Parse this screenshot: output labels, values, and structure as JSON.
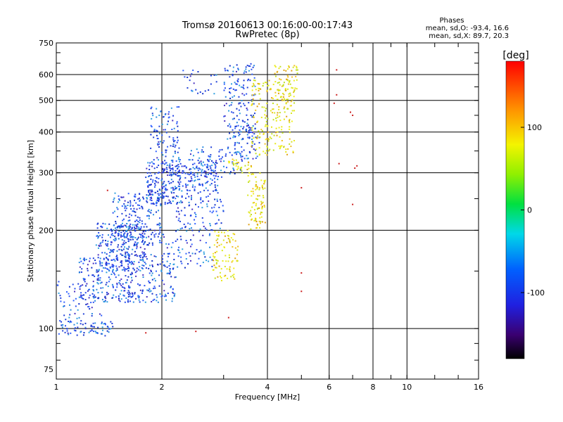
{
  "chart_data": {
    "type": "scatter",
    "title": "Tromsø 20160613 00:16:00-00:17:43",
    "subtitle": "RwPretec (8p)",
    "xlabel": "Frequency [MHz]",
    "ylabel": "Stationary phase Virtual Height [km]",
    "x_scale": "log",
    "y_scale": "log",
    "xlim": [
      1,
      16
    ],
    "ylim": [
      70,
      750
    ],
    "x_ticks": [
      1,
      2,
      4,
      6,
      8,
      10,
      16
    ],
    "y_ticks": [
      75,
      100,
      200,
      300,
      400,
      500,
      600,
      750
    ],
    "grid": true,
    "phase_info": {
      "title": "Phases",
      "line_o": "mean, sd,O: -93.4, 16.6",
      "line_x": "mean, sd,X:  89.7, 20.3"
    },
    "colorbar": {
      "label": "[deg]",
      "range": [
        -180,
        180
      ],
      "ticks": [
        "100",
        "0",
        "-100"
      ],
      "tick_values": [
        100,
        0,
        -100
      ]
    },
    "series": [
      {
        "mode": "O",
        "phase_mean": -93.4,
        "phase_sd": 16.6,
        "color": "#1f3fe0",
        "clusters": [
          {
            "x": [
              1.0,
              1.45
            ],
            "y": [
              95,
              105
            ],
            "n": 70
          },
          {
            "x": [
              1.0,
              1.35
            ],
            "y": [
              105,
              140
            ],
            "n": 60
          },
          {
            "x": [
              1.15,
              1.65
            ],
            "y": [
              120,
              165
            ],
            "n": 200
          },
          {
            "x": [
              1.3,
              1.8
            ],
            "y": [
              150,
              210
            ],
            "n": 250
          },
          {
            "x": [
              1.45,
              2.0
            ],
            "y": [
              180,
              260
            ],
            "n": 220
          },
          {
            "x": [
              1.6,
              2.2
            ],
            "y": [
              120,
              170
            ],
            "n": 160
          },
          {
            "x": [
              1.8,
              2.3
            ],
            "y": [
              240,
              330
            ],
            "n": 160
          },
          {
            "x": [
              1.85,
              2.25
            ],
            "y": [
              330,
              480
            ],
            "n": 90
          },
          {
            "x": [
              2.0,
              2.9
            ],
            "y": [
              250,
              330
            ],
            "n": 180
          },
          {
            "x": [
              2.2,
              3.0
            ],
            "y": [
              200,
              250
            ],
            "n": 80
          },
          {
            "x": [
              2.0,
              2.8
            ],
            "y": [
              150,
              200
            ],
            "n": 70
          },
          {
            "x": [
              2.4,
              3.4
            ],
            "y": [
              290,
              360
            ],
            "n": 90
          },
          {
            "x": [
              2.3,
              2.9
            ],
            "y": [
              520,
              620
            ],
            "n": 25
          },
          {
            "x": [
              3.0,
              3.7
            ],
            "y": [
              380,
              650
            ],
            "n": 140
          },
          {
            "x": [
              3.2,
              3.8
            ],
            "y": [
              330,
              420
            ],
            "n": 60
          }
        ]
      },
      {
        "mode": "X",
        "phase_mean": 89.7,
        "phase_sd": 20.3,
        "color": "#e8e81a",
        "clusters": [
          {
            "x": [
              3.6,
              4.8
            ],
            "y": [
              340,
              580
            ],
            "n": 200
          },
          {
            "x": [
              3.5,
              3.95
            ],
            "y": [
              200,
              300
            ],
            "n": 90
          },
          {
            "x": [
              2.8,
              3.3
            ],
            "y": [
              140,
              200
            ],
            "n": 90
          },
          {
            "x": [
              4.2,
              4.9
            ],
            "y": [
              500,
              640
            ],
            "n": 60
          },
          {
            "x": [
              3.1,
              3.6
            ],
            "y": [
              300,
              330
            ],
            "n": 30
          }
        ]
      },
      {
        "mode": "scattered",
        "color": "#cc2020",
        "points": [
          {
            "x": 6.3,
            "y": 620
          },
          {
            "x": 6.3,
            "y": 520
          },
          {
            "x": 6.2,
            "y": 490
          },
          {
            "x": 6.9,
            "y": 460
          },
          {
            "x": 7.0,
            "y": 450
          },
          {
            "x": 6.4,
            "y": 320
          },
          {
            "x": 7.2,
            "y": 315
          },
          {
            "x": 7.1,
            "y": 310
          },
          {
            "x": 7.0,
            "y": 240
          },
          {
            "x": 5.0,
            "y": 270
          },
          {
            "x": 5.0,
            "y": 148
          },
          {
            "x": 5.0,
            "y": 130
          },
          {
            "x": 3.1,
            "y": 108
          },
          {
            "x": 2.5,
            "y": 98
          },
          {
            "x": 1.8,
            "y": 97
          },
          {
            "x": 1.4,
            "y": 265
          }
        ]
      }
    ]
  }
}
